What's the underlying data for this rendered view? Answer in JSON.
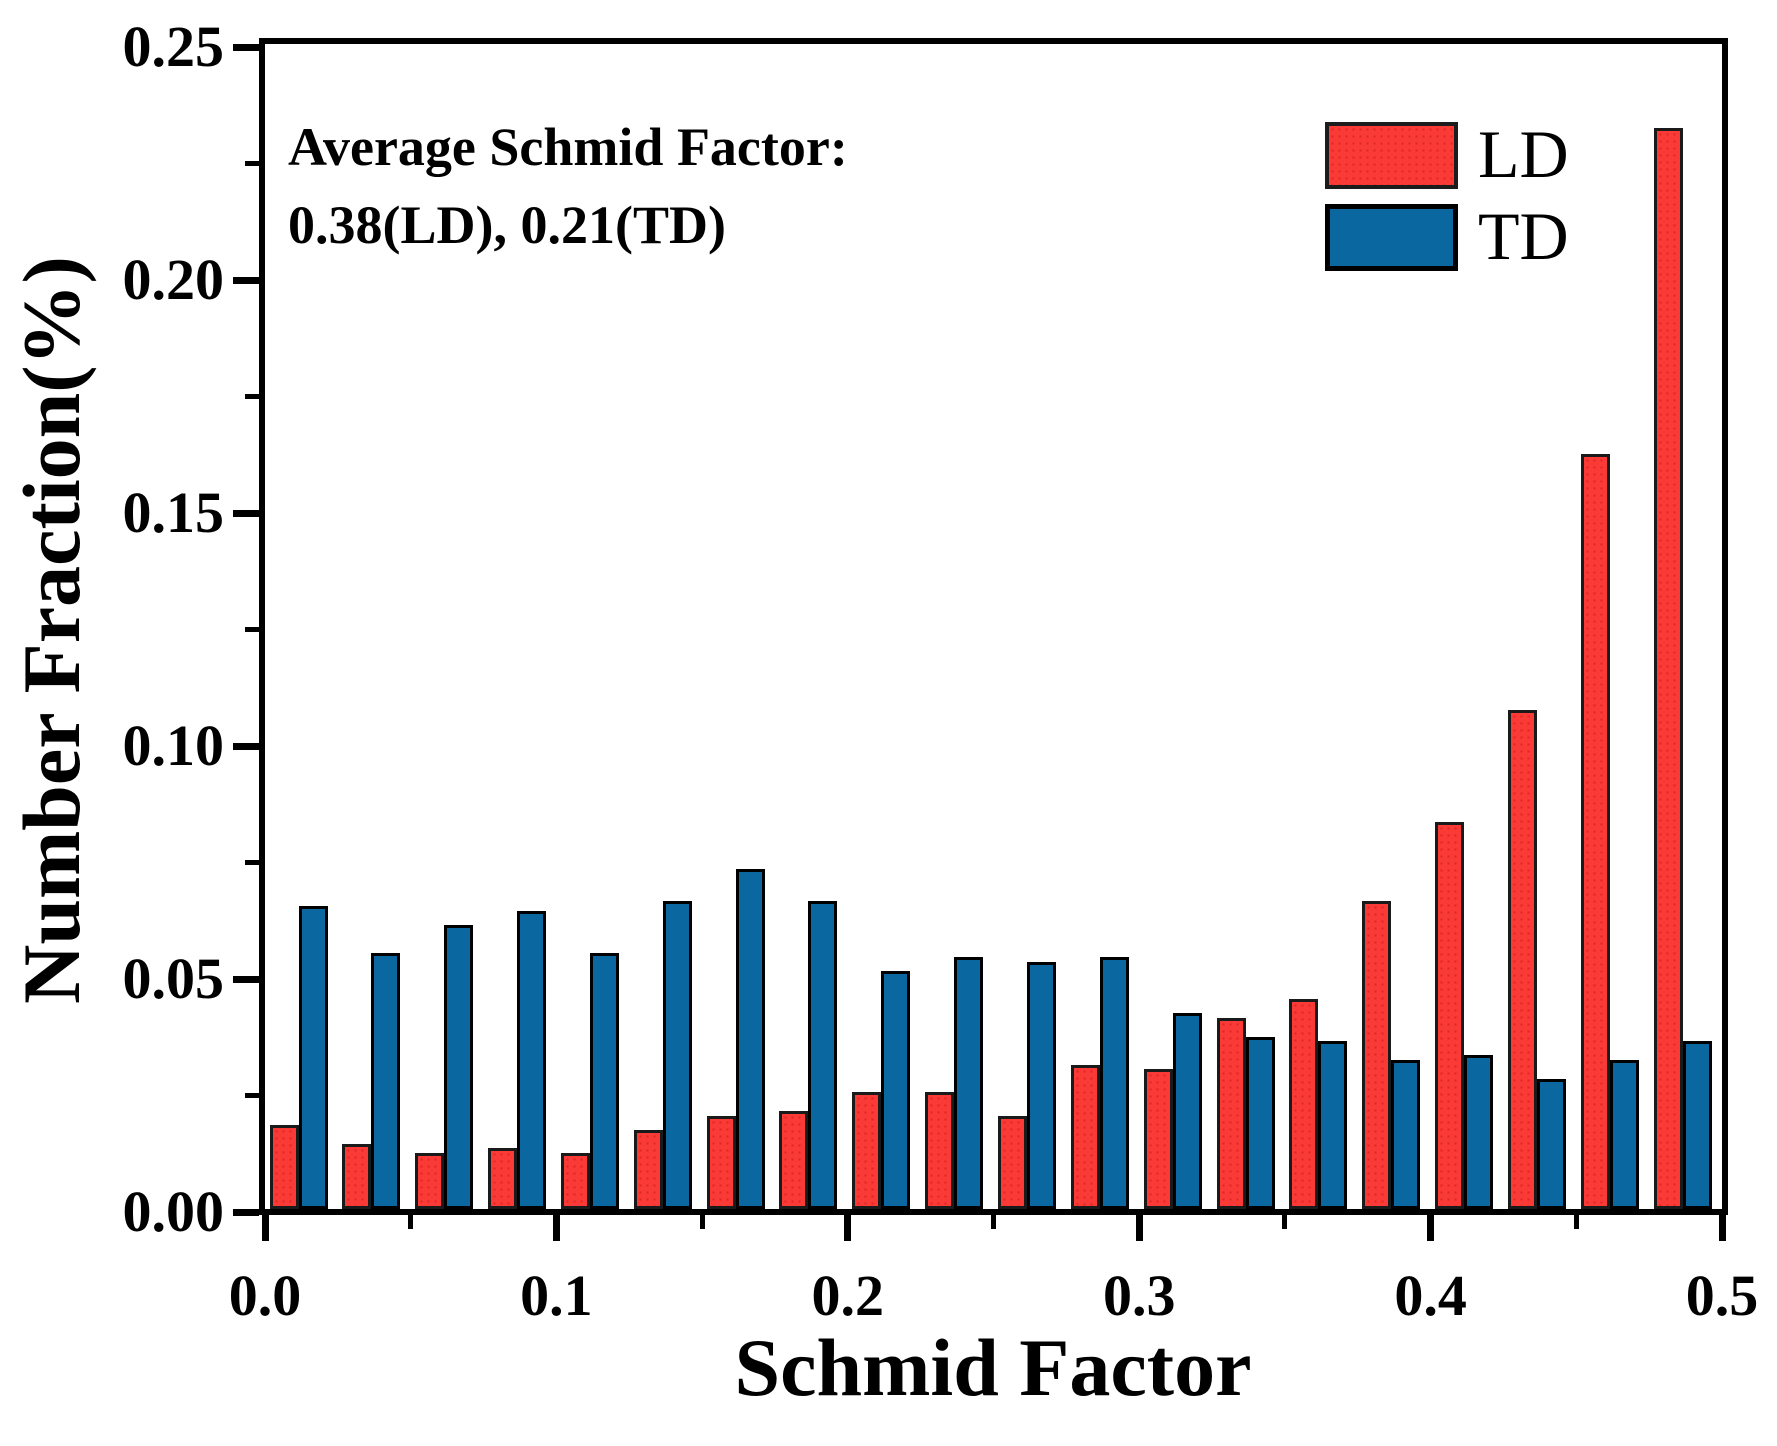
{
  "figure": {
    "background": "#ffffff",
    "annotation": {
      "line1": "Average Schmid Factor:",
      "line2": "0.38(LD), 0.21(TD)"
    },
    "legend": {
      "position": "top-right",
      "entries": [
        {
          "label": "LD",
          "color": "#fa3a37",
          "edge": "#1c1c1c"
        },
        {
          "label": "TD",
          "color": "#0a67a0",
          "edge": "#000000"
        }
      ]
    }
  },
  "chart_data": {
    "type": "bar",
    "title": "",
    "xlabel": "Schmid Factor",
    "ylabel": "Number Fraction(%)",
    "xlim": [
      0.0,
      0.5
    ],
    "ylim": [
      0.0,
      0.25
    ],
    "grid": false,
    "bin_width": 0.025,
    "categories": [
      0.0125,
      0.0375,
      0.0625,
      0.0875,
      0.1125,
      0.1375,
      0.1625,
      0.1875,
      0.2125,
      0.2375,
      0.2625,
      0.2875,
      0.3125,
      0.3375,
      0.3625,
      0.3875,
      0.4125,
      0.4375,
      0.4625,
      0.4875
    ],
    "series": [
      {
        "name": "LD",
        "color": "#fa3a37",
        "edge_color": "#1a1a1a",
        "values": [
          0.018,
          0.014,
          0.012,
          0.013,
          0.012,
          0.017,
          0.02,
          0.021,
          0.025,
          0.025,
          0.02,
          0.031,
          0.03,
          0.041,
          0.045,
          0.066,
          0.083,
          0.107,
          0.162,
          0.232
        ]
      },
      {
        "name": "TD",
        "color": "#0a67a0",
        "edge_color": "#000000",
        "values": [
          0.065,
          0.055,
          0.061,
          0.064,
          0.055,
          0.066,
          0.073,
          0.066,
          0.051,
          0.054,
          0.053,
          0.054,
          0.042,
          0.037,
          0.036,
          0.032,
          0.033,
          0.028,
          0.032,
          0.036
        ]
      }
    ],
    "yticks": {
      "values": [
        0.0,
        0.05,
        0.1,
        0.15,
        0.2,
        0.25
      ],
      "labels": [
        "0.00",
        "0.05",
        "0.10",
        "0.15",
        "0.20",
        "0.25"
      ]
    },
    "yticks_minor": [
      0.025,
      0.075,
      0.125,
      0.175,
      0.225
    ],
    "xticks": {
      "values": [
        0.0,
        0.1,
        0.2,
        0.3,
        0.4,
        0.5
      ],
      "labels": [
        "0.0",
        "0.1",
        "0.2",
        "0.3",
        "0.4",
        "0.5"
      ]
    },
    "xticks_minor": [
      0.05,
      0.15,
      0.25,
      0.35,
      0.45
    ],
    "legend_position": "top-right"
  }
}
